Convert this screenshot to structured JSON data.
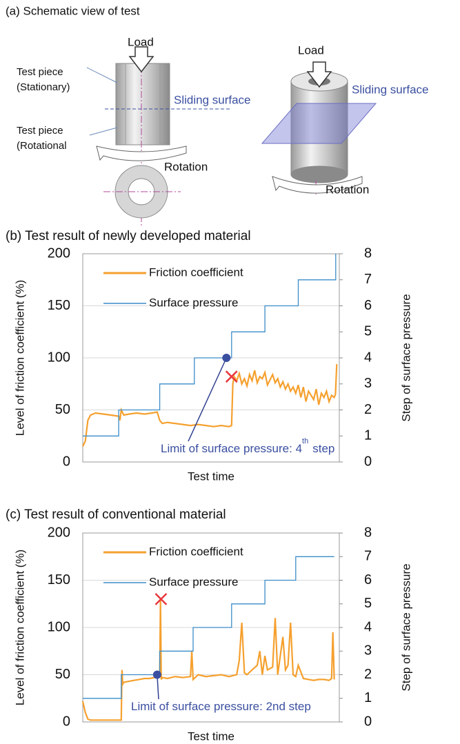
{
  "schematic": {
    "title": "(a) Schematic view of test",
    "load_left": "Load",
    "load_right": "Load",
    "stationary_label": [
      "Test piece",
      "(Stationary)"
    ],
    "rotational_label": [
      "Test piece",
      "(Rotational"
    ],
    "sliding_left": "Sliding surface",
    "sliding_right": "Sliding surface",
    "rotation_left": "Rotation",
    "rotation_right": "Rotation"
  },
  "chart_data": [
    {
      "type": "line",
      "title": "(b) Test result of newly developed material",
      "xlabel": "Test time",
      "ylabel": "Level of friction coefficient (%)",
      "y2label": "Step of surface pressure",
      "xlim": [
        0,
        100
      ],
      "ylim": [
        0,
        200
      ],
      "yticks": [
        0,
        50,
        100,
        150,
        200
      ],
      "y2lim": [
        0,
        8
      ],
      "y2ticks": [
        0,
        1,
        2,
        3,
        4,
        5,
        6,
        7,
        8
      ],
      "grid": true,
      "legend": "upper left",
      "series": [
        {
          "name": "Friction coefficient",
          "color": "#f5a02e",
          "x": [
            0,
            1,
            2,
            3,
            5,
            8,
            11,
            14,
            14.5,
            15,
            16,
            18,
            21,
            24,
            27,
            29,
            30,
            31,
            33,
            36,
            39,
            42,
            45,
            48,
            51,
            54,
            57,
            58,
            58.5,
            59,
            60,
            61,
            62,
            63,
            64,
            65,
            66,
            67,
            68,
            69,
            70,
            71,
            72,
            73,
            74,
            75,
            76,
            77,
            78,
            79,
            80,
            81,
            82,
            83,
            84,
            85,
            86,
            87,
            88,
            89,
            90,
            91,
            92,
            93,
            94,
            95,
            96,
            97,
            98,
            98.5,
            99
          ],
          "values": [
            15,
            20,
            40,
            45,
            47,
            46,
            45,
            44,
            40,
            50,
            45,
            46,
            47,
            46,
            47,
            48,
            40,
            37,
            38,
            37,
            36,
            35,
            36,
            35,
            34,
            35,
            34,
            35,
            75,
            82,
            78,
            85,
            75,
            80,
            73,
            84,
            78,
            88,
            76,
            82,
            80,
            86,
            74,
            79,
            84,
            76,
            80,
            72,
            77,
            70,
            75,
            68,
            72,
            66,
            74,
            62,
            72,
            58,
            68,
            64,
            60,
            70,
            55,
            66,
            62,
            68,
            58,
            64,
            62,
            65,
            94
          ]
        },
        {
          "name": "Surface pressure",
          "color": "#3a8cc8",
          "axis": "y2",
          "x": [
            0,
            14,
            14,
            30,
            30,
            43.5,
            43.5,
            58,
            58,
            71,
            71,
            84,
            84,
            98.6,
            98.6
          ],
          "values": [
            1,
            1,
            2,
            2,
            3,
            3,
            4,
            4,
            5,
            5,
            6,
            6,
            7,
            7,
            8
          ]
        }
      ],
      "markers": {
        "limit_point": {
          "x": 56,
          "y": 100,
          "color": "#3a4fa0"
        },
        "failure_point": {
          "x": 58,
          "y": 82,
          "color": "#e8383d"
        }
      },
      "annotation": {
        "text": "Limit of surface pressure: 4",
        "sup": "th",
        "after": "step"
      }
    },
    {
      "type": "line",
      "title": "(c) Test result of conventional material",
      "xlabel": "Test time",
      "ylabel": "Level of friction coefficient (%)",
      "y2label": "Step of surface pressure",
      "xlim": [
        0,
        100
      ],
      "ylim": [
        0,
        200
      ],
      "yticks": [
        0,
        50,
        100,
        150,
        200
      ],
      "y2lim": [
        0,
        8
      ],
      "y2ticks": [
        0,
        1,
        2,
        3,
        4,
        5,
        6,
        7,
        8
      ],
      "grid": true,
      "legend": "upper left",
      "series": [
        {
          "name": "Friction coefficient",
          "color": "#f5a02e",
          "x": [
            0,
            1,
            2,
            3,
            6,
            10,
            15,
            15.3,
            15.6,
            16,
            18,
            20,
            22,
            24,
            26,
            28,
            30,
            30.3,
            30.6,
            31,
            33,
            36,
            39,
            42,
            42.5,
            43,
            45,
            48,
            51,
            54,
            57,
            60,
            61,
            62,
            63,
            64,
            66,
            68,
            69,
            70,
            71,
            72,
            74,
            75,
            76,
            77,
            78,
            79,
            80,
            81,
            82,
            83,
            84,
            86,
            88,
            90,
            92,
            94,
            96,
            97,
            97.5,
            98
          ],
          "values": [
            22,
            10,
            3,
            2,
            2,
            2,
            2,
            55,
            40,
            42,
            43,
            44,
            45,
            46,
            46,
            47,
            48,
            130,
            45,
            47,
            46,
            48,
            47,
            48,
            75,
            45,
            50,
            48,
            49,
            50,
            48,
            50,
            65,
            105,
            52,
            50,
            55,
            60,
            75,
            50,
            70,
            55,
            58,
            110,
            50,
            70,
            90,
            55,
            60,
            105,
            50,
            48,
            60,
            46,
            45,
            44,
            45,
            45,
            44,
            46,
            95,
            45
          ]
        },
        {
          "name": "Surface pressure",
          "color": "#3a8cc8",
          "axis": "y2",
          "x": [
            0,
            15,
            15,
            30,
            30,
            43,
            43,
            58,
            58,
            71,
            71,
            83,
            83,
            98
          ],
          "values": [
            1,
            1,
            2,
            2,
            3,
            3,
            4,
            4,
            5,
            5,
            6,
            6,
            7,
            7
          ]
        }
      ],
      "markers": {
        "limit_point": {
          "x": 29,
          "y": 50,
          "color": "#3a4fa0"
        },
        "failure_point": {
          "x": 30.5,
          "y": 130,
          "color": "#e8383d"
        }
      },
      "annotation": {
        "text": "Limit of surface pressure: 2nd step"
      }
    }
  ]
}
